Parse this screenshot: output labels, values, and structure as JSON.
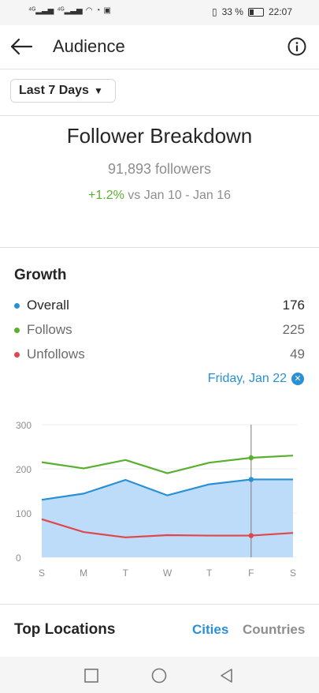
{
  "status_bar": {
    "battery": "33 %",
    "time": "22:07"
  },
  "header": {
    "title": "Audience"
  },
  "range_selector": {
    "label": "Last 7 Days"
  },
  "breakdown": {
    "title": "Follower Breakdown",
    "followers": "91,893 followers",
    "change_value": "+1.2%",
    "change_text": " vs Jan 10 - Jan 16"
  },
  "growth": {
    "title": "Growth",
    "legend": [
      {
        "label": "Overall",
        "value": "176",
        "color": "#2990d6"
      },
      {
        "label": "Follows",
        "value": "225",
        "color": "#59b02f"
      },
      {
        "label": "Unfollows",
        "value": "49",
        "color": "#e0474c"
      }
    ],
    "selected_date": "Friday, Jan 22"
  },
  "chart_data": {
    "type": "line",
    "categories": [
      "S",
      "M",
      "T",
      "W",
      "T",
      "F",
      "S"
    ],
    "ylim": [
      0,
      300
    ],
    "yticks": [
      0,
      100,
      200,
      300
    ],
    "selected_index": 5,
    "series": [
      {
        "name": "Follows",
        "color": "#59b02f",
        "values": [
          215,
          201,
          220,
          190,
          214,
          225,
          230
        ]
      },
      {
        "name": "Overall",
        "color": "#2990d6",
        "values": [
          130,
          144,
          175,
          140,
          165,
          176,
          176
        ],
        "fill": "#bddcfa"
      },
      {
        "name": "Unfollows",
        "color": "#e0474c",
        "values": [
          86,
          57,
          45,
          50,
          49,
          49,
          55
        ]
      }
    ]
  },
  "locations": {
    "title": "Top Locations",
    "tab_cities": "Cities",
    "tab_countries": "Countries"
  }
}
